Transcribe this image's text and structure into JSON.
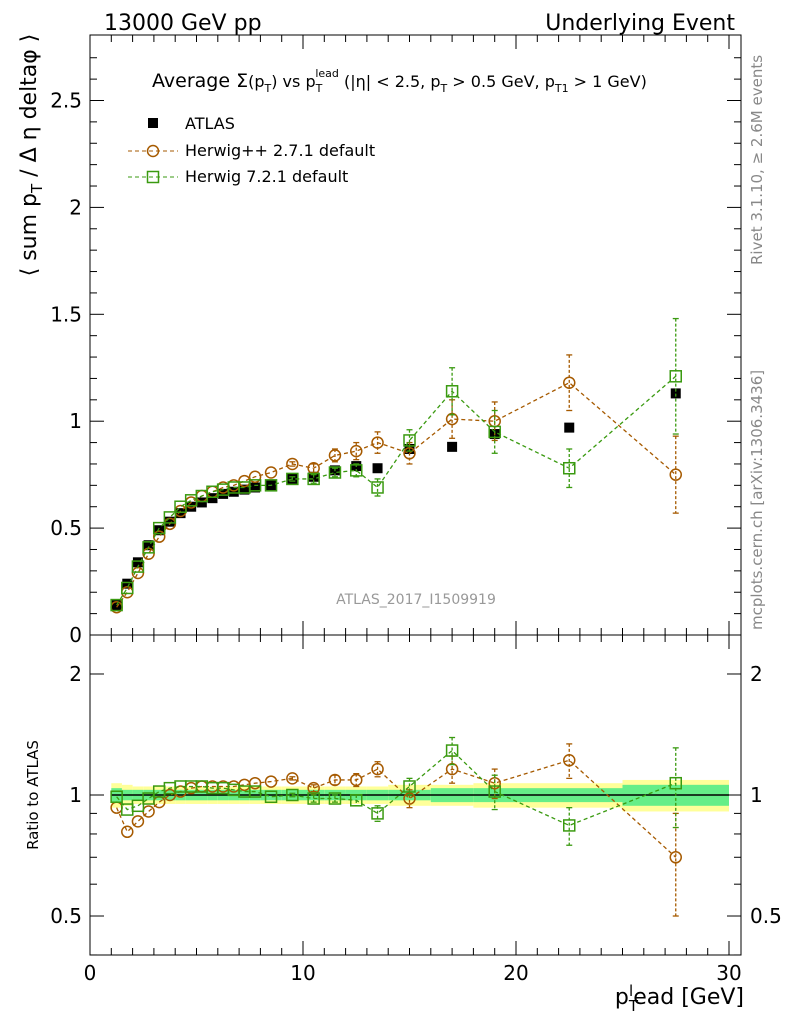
{
  "header": {
    "left": "13000 GeV pp",
    "right": "Underlying Event"
  },
  "side_labels": {
    "rivet": "Rivet 3.1.10, ≥ 2.6M events",
    "mcplots": "mcplots.cern.ch [arXiv:1306.3436]"
  },
  "colors": {
    "atlas": "#000000",
    "herwigpp": "#a65a00",
    "herwig7": "#3a9a10",
    "band_inner": "#66ee88",
    "band_outer": "#ffff99"
  },
  "chart_data": [
    {
      "type": "scatter",
      "title": {
        "prefix": "Average ",
        "sigma": "Σ",
        "p": "(p",
        "p_sub": "T",
        "after": ") vs p",
        "lead_sub": "T",
        "lead_sup": "lead",
        "rest1": " (|η| < 2.5, p",
        "rest1_sub": "T",
        "rest2": " > 0.5 GeV, p",
        "rest2_sub": "T1",
        "rest3": " > 1 GeV)"
      },
      "ylabel": "⟨ sum p_T / Δη deltaφ ⟩",
      "ylim": [
        0,
        2.8
      ],
      "xlim": [
        0,
        30
      ],
      "yticks": [
        "0",
        "0.5",
        "1",
        "1.5",
        "2",
        "2.5"
      ],
      "watermark": "ATLAS_2017_I1509919",
      "series": [
        {
          "name": "ATLAS",
          "x": [
            1.25,
            1.75,
            2.25,
            2.75,
            3.25,
            3.75,
            4.25,
            4.75,
            5.25,
            5.75,
            6.25,
            6.75,
            7.25,
            7.75,
            8.5,
            9.5,
            10.5,
            11.5,
            12.5,
            13.5,
            15,
            17,
            19,
            22.5,
            27.5
          ],
          "y": [
            0.14,
            0.24,
            0.34,
            0.42,
            0.49,
            0.53,
            0.57,
            0.6,
            0.62,
            0.64,
            0.66,
            0.67,
            0.68,
            0.69,
            0.7,
            0.73,
            0.74,
            0.77,
            0.79,
            0.78,
            0.87,
            0.88,
            0.94,
            0.97,
            1.13
          ]
        },
        {
          "name": "Herwig++ 2.7.1 default",
          "x": [
            1.25,
            1.75,
            2.25,
            2.75,
            3.25,
            3.75,
            4.25,
            4.75,
            5.25,
            5.75,
            6.25,
            6.75,
            7.25,
            7.75,
            8.5,
            9.5,
            10.5,
            11.5,
            12.5,
            13.5,
            15,
            17,
            19,
            22.5,
            27.5
          ],
          "y": [
            0.13,
            0.2,
            0.29,
            0.38,
            0.46,
            0.52,
            0.58,
            0.62,
            0.65,
            0.67,
            0.69,
            0.7,
            0.72,
            0.74,
            0.76,
            0.8,
            0.78,
            0.84,
            0.86,
            0.9,
            0.85,
            1.01,
            1.0,
            1.18,
            0.75
          ],
          "err": [
            0,
            0,
            0,
            0,
            0,
            0,
            0,
            0,
            0,
            0,
            0,
            0,
            0,
            0,
            0,
            0.01,
            0.02,
            0.03,
            0.04,
            0.05,
            0.05,
            0.09,
            0.09,
            0.13,
            0.18
          ]
        },
        {
          "name": "Herwig 7.2.1 default",
          "x": [
            1.25,
            1.75,
            2.25,
            2.75,
            3.25,
            3.75,
            4.25,
            4.75,
            5.25,
            5.75,
            6.25,
            6.75,
            7.25,
            7.75,
            8.5,
            9.5,
            10.5,
            11.5,
            12.5,
            13.5,
            15,
            17,
            19,
            22.5,
            27.5
          ],
          "y": [
            0.14,
            0.22,
            0.32,
            0.41,
            0.5,
            0.55,
            0.6,
            0.63,
            0.65,
            0.67,
            0.68,
            0.69,
            0.69,
            0.7,
            0.7,
            0.73,
            0.73,
            0.76,
            0.77,
            0.69,
            0.91,
            1.14,
            0.95,
            0.78,
            1.21
          ],
          "err": [
            0,
            0,
            0,
            0,
            0,
            0,
            0,
            0,
            0,
            0,
            0,
            0,
            0,
            0,
            0,
            0.01,
            0.02,
            0.02,
            0.03,
            0.04,
            0.05,
            0.11,
            0.1,
            0.09,
            0.27
          ]
        }
      ]
    },
    {
      "type": "scatter",
      "ylabel": "Ratio to ATLAS",
      "xlabel": "p_T^lead [GeV]",
      "ylim": [
        0.35,
        2.3
      ],
      "xlim": [
        0,
        30
      ],
      "yticks": [
        "0.5",
        "1",
        "2"
      ],
      "xticks": [
        "0",
        "10",
        "20",
        "30"
      ],
      "band_x_edges": [
        1,
        1.5,
        2,
        2.5,
        3,
        3.5,
        4,
        4.5,
        5,
        5.5,
        6,
        6.5,
        7,
        7.5,
        8,
        9,
        10,
        11,
        12,
        13,
        14,
        16,
        18,
        20,
        25,
        30
      ],
      "band_inner": [
        0.04,
        0.03,
        0.03,
        0.03,
        0.03,
        0.03,
        0.03,
        0.03,
        0.03,
        0.03,
        0.03,
        0.03,
        0.03,
        0.03,
        0.03,
        0.03,
        0.03,
        0.03,
        0.03,
        0.03,
        0.03,
        0.04,
        0.04,
        0.04,
        0.06
      ],
      "band_outer": [
        0.07,
        0.06,
        0.05,
        0.05,
        0.05,
        0.05,
        0.05,
        0.05,
        0.05,
        0.05,
        0.05,
        0.05,
        0.05,
        0.05,
        0.05,
        0.05,
        0.05,
        0.05,
        0.05,
        0.05,
        0.06,
        0.06,
        0.07,
        0.07,
        0.09
      ],
      "series": [
        {
          "name": "Herwig++ 2.7.1 default",
          "x": [
            1.25,
            1.75,
            2.25,
            2.75,
            3.25,
            3.75,
            4.25,
            4.75,
            5.25,
            5.75,
            6.25,
            6.75,
            7.25,
            7.75,
            8.5,
            9.5,
            10.5,
            11.5,
            12.5,
            13.5,
            15,
            17,
            19,
            22.5,
            27.5
          ],
          "y": [
            0.93,
            0.81,
            0.86,
            0.91,
            0.96,
            1.0,
            1.02,
            1.04,
            1.05,
            1.05,
            1.05,
            1.05,
            1.06,
            1.07,
            1.08,
            1.1,
            1.04,
            1.09,
            1.09,
            1.16,
            0.98,
            1.16,
            1.07,
            1.22,
            0.7
          ],
          "err": [
            0,
            0,
            0,
            0,
            0,
            0,
            0,
            0,
            0,
            0,
            0,
            0,
            0,
            0,
            0,
            0.01,
            0.02,
            0.03,
            0.04,
            0.05,
            0.05,
            0.09,
            0.09,
            0.12,
            0.2
          ]
        },
        {
          "name": "Herwig 7.2.1 default",
          "x": [
            1.25,
            1.75,
            2.25,
            2.75,
            3.25,
            3.75,
            4.25,
            4.75,
            5.25,
            5.75,
            6.25,
            6.75,
            7.25,
            7.75,
            8.5,
            9.5,
            10.5,
            11.5,
            12.5,
            13.5,
            15,
            17,
            19,
            22.5,
            27.5
          ],
          "y": [
            0.99,
            0.92,
            0.94,
            0.98,
            1.02,
            1.04,
            1.05,
            1.05,
            1.05,
            1.04,
            1.04,
            1.03,
            1.02,
            1.02,
            0.99,
            1.0,
            0.98,
            0.98,
            0.97,
            0.9,
            1.05,
            1.29,
            1.02,
            0.84,
            1.07
          ],
          "err": [
            0,
            0,
            0,
            0,
            0,
            0,
            0,
            0,
            0,
            0,
            0,
            0,
            0,
            0,
            0,
            0.01,
            0.02,
            0.02,
            0.03,
            0.04,
            0.05,
            0.1,
            0.1,
            0.09,
            0.24
          ]
        }
      ]
    }
  ]
}
